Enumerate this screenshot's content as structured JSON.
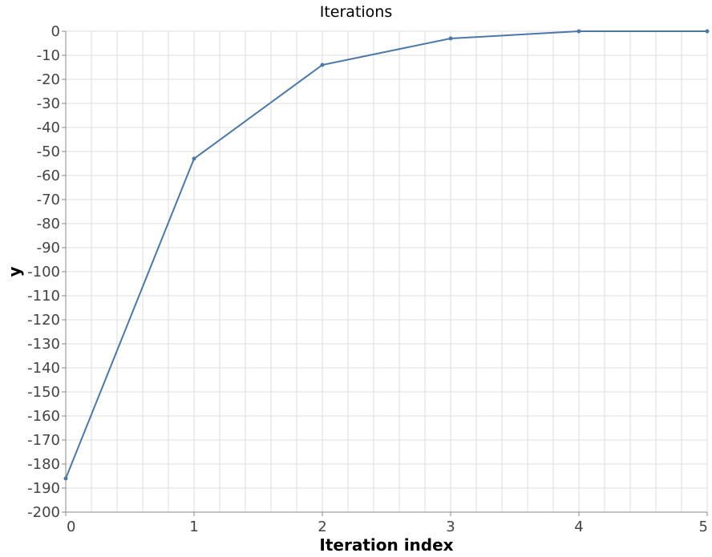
{
  "chart_data": {
    "type": "line",
    "title": "Iterations",
    "xlabel": "Iteration index",
    "ylabel": "y",
    "xlim": [
      0,
      5
    ],
    "ylim": [
      -200,
      0
    ],
    "x_ticks": [
      0,
      1,
      2,
      3,
      4,
      5
    ],
    "y_ticks": [
      0,
      -10,
      -20,
      -30,
      -40,
      -50,
      -60,
      -70,
      -80,
      -90,
      -100,
      -110,
      -120,
      -130,
      -140,
      -150,
      -160,
      -170,
      -180,
      -190,
      -200
    ],
    "grid": true,
    "series": [
      {
        "x": [
          0,
          1,
          2,
          3,
          4,
          5
        ],
        "y": [
          -186,
          -53,
          -14,
          -3,
          0,
          0
        ],
        "color": "#4c78a8"
      }
    ]
  }
}
